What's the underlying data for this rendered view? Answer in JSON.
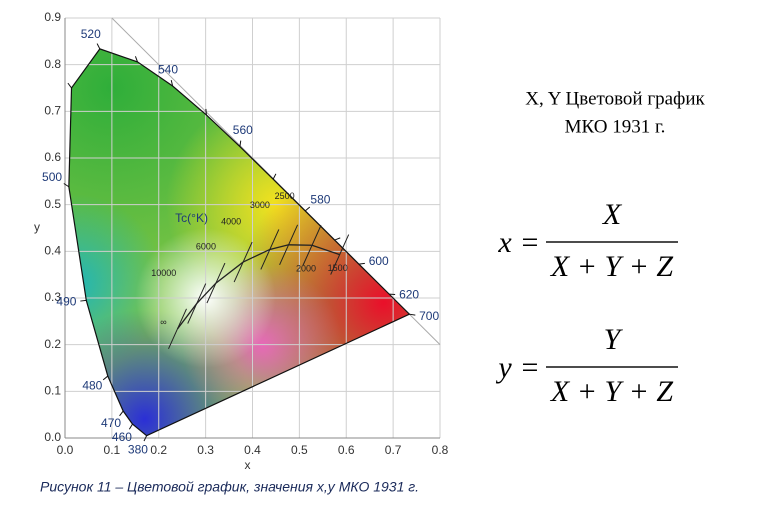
{
  "chart_data": {
    "type": "chromaticity",
    "title": [
      "X, Y Цветовой график",
      "МКО 1931 г."
    ],
    "xlabel": "x",
    "ylabel": "y",
    "xlim": [
      0,
      0.8
    ],
    "ylim": [
      0,
      0.9
    ],
    "xticks": [
      {
        "value": 0,
        "label": "0.0"
      },
      0.1,
      0.2,
      0.3,
      0.4,
      0.5,
      0.6,
      0.7,
      0.8
    ],
    "yticks": [
      {
        "value": 0,
        "label": "0.0"
      },
      0.1,
      0.2,
      0.3,
      0.4,
      0.5,
      0.6,
      0.7,
      0.8,
      0.9
    ],
    "grid": true,
    "locus": {
      "labels": [
        "380",
        "460",
        "470",
        "480",
        "490",
        "500",
        null,
        "520",
        null,
        "540",
        null,
        "560",
        null,
        "580",
        null,
        "600",
        "620",
        "700"
      ],
      "x": [
        0.1741,
        0.144,
        0.1241,
        0.0913,
        0.0454,
        0.0082,
        0.0139,
        0.0743,
        0.1547,
        0.2296,
        0.3016,
        0.3731,
        0.4441,
        0.5125,
        0.5752,
        0.627,
        0.6915,
        0.7347
      ],
      "y": [
        0.005,
        0.0297,
        0.0578,
        0.1327,
        0.295,
        0.5384,
        0.7502,
        0.8338,
        0.8059,
        0.7543,
        0.6923,
        0.6245,
        0.5547,
        0.4866,
        0.4242,
        0.3725,
        0.3083,
        0.2653
      ]
    },
    "planck": {
      "title": "Tc(°K)",
      "labels": [
        "∞",
        "10000",
        "6000",
        "4000",
        "3000",
        "2500",
        "2000",
        "1500"
      ],
      "x": [
        0.24,
        0.281,
        0.322,
        0.38,
        0.437,
        0.477,
        0.527,
        0.586
      ],
      "y": [
        0.234,
        0.288,
        0.332,
        0.377,
        0.404,
        0.414,
        0.413,
        0.393
      ],
      "color": "#222222"
    }
  },
  "formulas": [
    {
      "lhs": "x",
      "operator": "=",
      "numerator": "X",
      "denominator": "X + Y + Z"
    },
    {
      "lhs": "y",
      "operator": "=",
      "numerator": "Y",
      "denominator": "X + Y + Z"
    }
  ],
  "caption": "Рисунок 11 – Цветовой график, значения x,y МКО 1931 г."
}
